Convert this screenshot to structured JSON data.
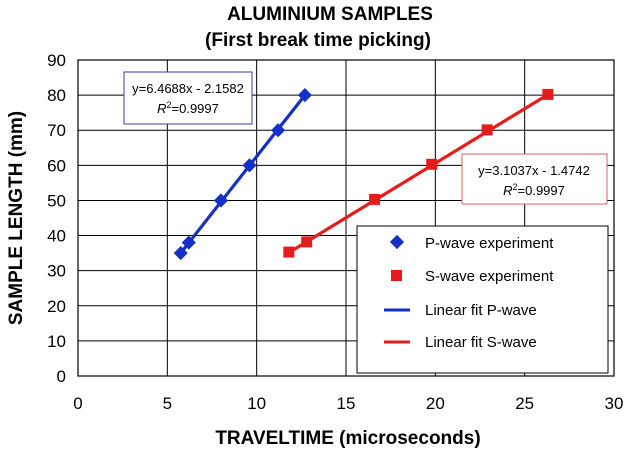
{
  "chart_data": {
    "type": "scatter",
    "title": "ALUMINIUM SAMPLES",
    "subtitle": "(First break time picking)",
    "xlabel": "TRAVELTIME (microseconds)",
    "ylabel": "SAMPLE  LENGTH  (mm)",
    "xlim": [
      0,
      30
    ],
    "ylim": [
      0,
      90
    ],
    "x_ticks": [
      0,
      5,
      10,
      15,
      20,
      25,
      30
    ],
    "y_ticks": [
      0,
      10,
      20,
      30,
      40,
      50,
      60,
      70,
      80,
      90
    ],
    "grid": true,
    "legend_position": "lower-right",
    "series": [
      {
        "name": "P-wave experiment",
        "marker": "diamond",
        "color": "#1530c8",
        "x": [
          5.75,
          6.2,
          8.0,
          9.6,
          11.2,
          12.7
        ],
        "y": [
          35,
          38,
          50,
          60,
          70,
          80
        ]
      },
      {
        "name": "S-wave experiment",
        "marker": "square",
        "color": "#e81b1b",
        "x": [
          11.8,
          12.8,
          16.6,
          19.8,
          22.9,
          26.3
        ],
        "y": [
          35.3,
          38.2,
          50.3,
          60.3,
          70.1,
          80.2
        ]
      }
    ],
    "fits": [
      {
        "name": "Linear fit P-wave",
        "color": "#1530c8",
        "slope": 6.4688,
        "intercept": -2.1582,
        "x_range": [
          5.75,
          12.7
        ],
        "equation": "y=6.4688x - 2.1582",
        "r2_label": "R",
        "r2_sup": "2",
        "r2_value": "=0.9997"
      },
      {
        "name": "Linear fit S-wave",
        "color": "#e81b1b",
        "slope": 3.1037,
        "intercept": -1.4742,
        "x_range": [
          11.8,
          26.3
        ],
        "equation": "y=3.1037x - 1.4742",
        "r2_label": "R",
        "r2_sup": "2",
        "r2_value": "=0.9997"
      }
    ]
  }
}
